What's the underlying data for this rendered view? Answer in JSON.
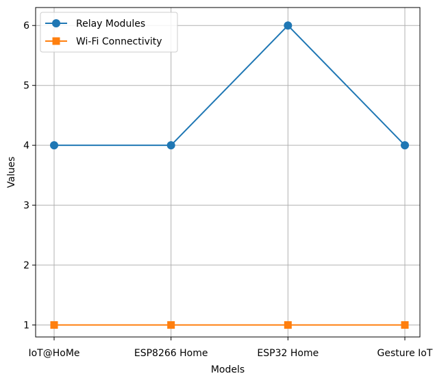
{
  "chart_data": {
    "type": "line",
    "title": "",
    "xlabel": "Models",
    "ylabel": "Values",
    "categories": [
      "IoT@HoMe",
      "ESP8266 Home",
      "ESP32 Home",
      "Gesture IoT"
    ],
    "ylim": [
      0.8,
      6.3
    ],
    "yticks": [
      1,
      2,
      3,
      4,
      5,
      6
    ],
    "grid": true,
    "legend_position": "top-left",
    "series": [
      {
        "name": "Relay Modules",
        "values": [
          4,
          4,
          6,
          4
        ],
        "color": "#1f77b4",
        "marker": "circle"
      },
      {
        "name": "Wi-Fi Connectivity",
        "values": [
          1,
          1,
          1,
          1
        ],
        "color": "#ff7f0e",
        "marker": "square"
      }
    ]
  }
}
